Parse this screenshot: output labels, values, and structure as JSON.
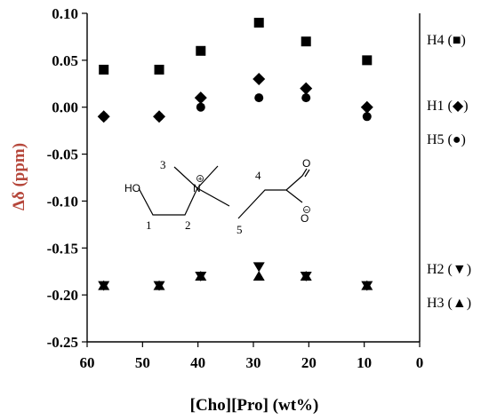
{
  "chart_data": {
    "type": "scatter",
    "xlabel": "[Cho][Pro] (wt%)",
    "ylabel": "Δδ (ppm)",
    "xlim": [
      60,
      0
    ],
    "ylim": [
      -0.25,
      0.1
    ],
    "x_ticks": [
      "60",
      "50",
      "40",
      "30",
      "20",
      "10",
      "0"
    ],
    "y_ticks": [
      "0.10",
      "0.05",
      "0.00",
      "-0.05",
      "-0.10",
      "-0.15",
      "-0.20",
      "-0.25"
    ],
    "x_tick_values": [
      60,
      50,
      40,
      30,
      20,
      10,
      0
    ],
    "y_tick_values": [
      0.1,
      0.05,
      0.0,
      -0.05,
      -0.1,
      -0.15,
      -0.2,
      -0.25
    ],
    "legend_placement": "right",
    "series": [
      {
        "name": "H4",
        "legend": "H4 (■)",
        "marker": "square",
        "x": [
          57,
          47,
          39.5,
          29,
          20.5,
          9.5
        ],
        "y": [
          0.04,
          0.04,
          0.06,
          0.09,
          0.07,
          0.05
        ]
      },
      {
        "name": "H1",
        "legend": "H1 (◆)",
        "marker": "diamond",
        "x": [
          57,
          47,
          39.5,
          29,
          20.5,
          9.5
        ],
        "y": [
          -0.01,
          -0.01,
          0.01,
          0.03,
          0.02,
          0.0
        ]
      },
      {
        "name": "H5",
        "legend": "H5 (●)",
        "marker": "circle",
        "x": [
          57,
          47,
          39.5,
          29,
          20.5,
          9.5
        ],
        "y": [
          -0.01,
          -0.01,
          0.0,
          0.01,
          0.01,
          -0.01
        ]
      },
      {
        "name": "H2",
        "legend": "H2 (▼)",
        "marker": "triangle-down",
        "x": [
          57,
          47,
          39.5,
          29,
          20.5,
          9.5
        ],
        "y": [
          -0.19,
          -0.19,
          -0.18,
          -0.17,
          -0.18,
          -0.19
        ]
      },
      {
        "name": "H3",
        "legend": "H3 (▲)",
        "marker": "triangle-up",
        "x": [
          57,
          47,
          39.5,
          29,
          20.5,
          9.5
        ],
        "y": [
          -0.19,
          -0.19,
          -0.18,
          -0.18,
          -0.18,
          -0.19
        ]
      }
    ],
    "structure_inset": {
      "labels": [
        "HO",
        "1",
        "2",
        "3",
        "4",
        "5",
        "O",
        "O"
      ],
      "charges": [
        "+",
        "−"
      ]
    }
  }
}
